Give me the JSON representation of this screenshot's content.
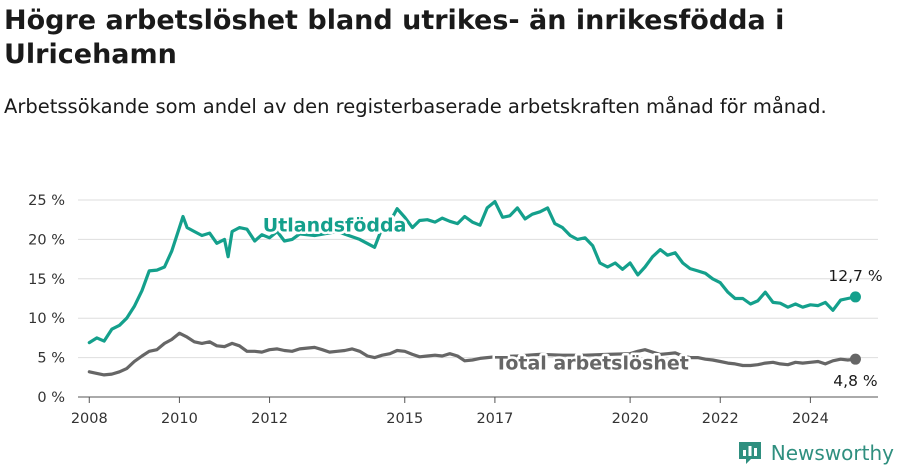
{
  "title": "Högre arbetslöshet bland utrikes- än inrikesfödda i Ulricehamn",
  "subtitle": "Arbetssökande som andel av den registerbaserade arbetskraften månad för månad.",
  "brand": {
    "name": "Newsworthy",
    "icon": "bar-chart-badge-icon",
    "color": "#2f8f7f"
  },
  "chart_data": {
    "type": "line",
    "x_unit": "year (monthly data)",
    "xlim": [
      2007.75,
      2025.5
    ],
    "ylim": [
      0,
      25
    ],
    "x_ticks": [
      2008,
      2010,
      2012,
      2015,
      2017,
      2020,
      2022,
      2024
    ],
    "y_ticks": [
      {
        "value": 0,
        "label": "0 %"
      },
      {
        "value": 5,
        "label": "5 %"
      },
      {
        "value": 10,
        "label": "10 %"
      },
      {
        "value": 15,
        "label": "15 %"
      },
      {
        "value": 20,
        "label": "20 %"
      },
      {
        "value": 25,
        "label": "25 %"
      }
    ],
    "grid": "horizontal",
    "series": [
      {
        "name": "Utlandsfödda",
        "color": "#14a08c",
        "end_label": "12,7 %",
        "points": [
          [
            2008.0,
            6.9
          ],
          [
            2008.17,
            7.5
          ],
          [
            2008.33,
            7.1
          ],
          [
            2008.5,
            8.6
          ],
          [
            2008.67,
            9.1
          ],
          [
            2008.83,
            10.0
          ],
          [
            2009.0,
            11.5
          ],
          [
            2009.17,
            13.5
          ],
          [
            2009.33,
            16.0
          ],
          [
            2009.5,
            16.1
          ],
          [
            2009.67,
            16.5
          ],
          [
            2009.83,
            18.5
          ],
          [
            2010.0,
            21.5
          ],
          [
            2010.08,
            22.9
          ],
          [
            2010.17,
            21.5
          ],
          [
            2010.33,
            21.0
          ],
          [
            2010.5,
            20.5
          ],
          [
            2010.67,
            20.8
          ],
          [
            2010.83,
            19.5
          ],
          [
            2011.0,
            20.0
          ],
          [
            2011.08,
            17.8
          ],
          [
            2011.17,
            21.0
          ],
          [
            2011.33,
            21.5
          ],
          [
            2011.5,
            21.3
          ],
          [
            2011.67,
            19.8
          ],
          [
            2011.83,
            20.6
          ],
          [
            2012.0,
            20.2
          ],
          [
            2012.17,
            21.0
          ],
          [
            2012.33,
            19.8
          ],
          [
            2012.5,
            20.0
          ],
          [
            2012.67,
            20.7
          ],
          [
            2013.0,
            20.5
          ],
          [
            2013.5,
            21.0
          ],
          [
            2014.0,
            20.0
          ],
          [
            2014.33,
            19.0
          ],
          [
            2014.5,
            21.5
          ],
          [
            2014.67,
            22.2
          ],
          [
            2014.83,
            23.9
          ],
          [
            2015.0,
            22.8
          ],
          [
            2015.17,
            21.5
          ],
          [
            2015.33,
            22.4
          ],
          [
            2015.5,
            22.5
          ],
          [
            2015.67,
            22.2
          ],
          [
            2015.83,
            22.7
          ],
          [
            2016.0,
            22.3
          ],
          [
            2016.17,
            22.0
          ],
          [
            2016.33,
            22.9
          ],
          [
            2016.5,
            22.2
          ],
          [
            2016.67,
            21.8
          ],
          [
            2016.83,
            24.0
          ],
          [
            2017.0,
            24.8
          ],
          [
            2017.17,
            22.8
          ],
          [
            2017.33,
            23.0
          ],
          [
            2017.5,
            24.0
          ],
          [
            2017.67,
            22.6
          ],
          [
            2017.83,
            23.2
          ],
          [
            2018.0,
            23.5
          ],
          [
            2018.17,
            24.0
          ],
          [
            2018.33,
            22.0
          ],
          [
            2018.5,
            21.5
          ],
          [
            2018.67,
            20.5
          ],
          [
            2018.83,
            20.0
          ],
          [
            2019.0,
            20.2
          ],
          [
            2019.17,
            19.2
          ],
          [
            2019.33,
            17.0
          ],
          [
            2019.5,
            16.5
          ],
          [
            2019.67,
            17.0
          ],
          [
            2019.83,
            16.2
          ],
          [
            2020.0,
            17.0
          ],
          [
            2020.17,
            15.5
          ],
          [
            2020.33,
            16.5
          ],
          [
            2020.5,
            17.8
          ],
          [
            2020.67,
            18.7
          ],
          [
            2020.83,
            18.0
          ],
          [
            2021.0,
            18.3
          ],
          [
            2021.17,
            17.0
          ],
          [
            2021.33,
            16.3
          ],
          [
            2021.5,
            16.0
          ],
          [
            2021.67,
            15.7
          ],
          [
            2021.83,
            15.0
          ],
          [
            2022.0,
            14.5
          ],
          [
            2022.17,
            13.3
          ],
          [
            2022.33,
            12.5
          ],
          [
            2022.5,
            12.5
          ],
          [
            2022.67,
            11.8
          ],
          [
            2022.83,
            12.2
          ],
          [
            2023.0,
            13.3
          ],
          [
            2023.17,
            12.0
          ],
          [
            2023.33,
            11.9
          ],
          [
            2023.5,
            11.4
          ],
          [
            2023.67,
            11.8
          ],
          [
            2023.83,
            11.4
          ],
          [
            2024.0,
            11.7
          ],
          [
            2024.17,
            11.6
          ],
          [
            2024.33,
            12.0
          ],
          [
            2024.5,
            11.0
          ],
          [
            2024.67,
            12.3
          ],
          [
            2024.83,
            12.5
          ],
          [
            2025.0,
            12.7
          ]
        ]
      },
      {
        "name": "Total arbetslöshet",
        "color": "#666666",
        "end_label": "4,8 %",
        "points": [
          [
            2008.0,
            3.2
          ],
          [
            2008.17,
            3.0
          ],
          [
            2008.33,
            2.8
          ],
          [
            2008.5,
            2.9
          ],
          [
            2008.67,
            3.2
          ],
          [
            2008.83,
            3.6
          ],
          [
            2009.0,
            4.5
          ],
          [
            2009.17,
            5.2
          ],
          [
            2009.33,
            5.8
          ],
          [
            2009.5,
            6.0
          ],
          [
            2009.67,
            6.8
          ],
          [
            2009.83,
            7.3
          ],
          [
            2010.0,
            8.1
          ],
          [
            2010.17,
            7.6
          ],
          [
            2010.33,
            7.0
          ],
          [
            2010.5,
            6.8
          ],
          [
            2010.67,
            7.0
          ],
          [
            2010.83,
            6.5
          ],
          [
            2011.0,
            6.4
          ],
          [
            2011.17,
            6.8
          ],
          [
            2011.33,
            6.5
          ],
          [
            2011.5,
            5.8
          ],
          [
            2011.67,
            5.8
          ],
          [
            2011.83,
            5.7
          ],
          [
            2012.0,
            6.0
          ],
          [
            2012.17,
            6.1
          ],
          [
            2012.33,
            5.9
          ],
          [
            2012.5,
            5.8
          ],
          [
            2012.67,
            6.1
          ],
          [
            2012.83,
            6.2
          ],
          [
            2013.0,
            6.3
          ],
          [
            2013.17,
            6.0
          ],
          [
            2013.33,
            5.7
          ],
          [
            2013.5,
            5.8
          ],
          [
            2013.67,
            5.9
          ],
          [
            2013.83,
            6.1
          ],
          [
            2014.0,
            5.8
          ],
          [
            2014.17,
            5.2
          ],
          [
            2014.33,
            5.0
          ],
          [
            2014.5,
            5.3
          ],
          [
            2014.67,
            5.5
          ],
          [
            2014.83,
            5.9
          ],
          [
            2015.0,
            5.8
          ],
          [
            2015.17,
            5.4
          ],
          [
            2015.33,
            5.1
          ],
          [
            2015.5,
            5.2
          ],
          [
            2015.67,
            5.3
          ],
          [
            2015.83,
            5.2
          ],
          [
            2016.0,
            5.5
          ],
          [
            2016.17,
            5.2
          ],
          [
            2016.33,
            4.6
          ],
          [
            2016.5,
            4.7
          ],
          [
            2016.67,
            4.9
          ],
          [
            2016.83,
            5.0
          ],
          [
            2017.0,
            5.1
          ],
          [
            2017.5,
            5.2
          ],
          [
            2018.0,
            5.4
          ],
          [
            2018.5,
            5.3
          ],
          [
            2019.0,
            5.3
          ],
          [
            2019.5,
            5.4
          ],
          [
            2020.0,
            5.5
          ],
          [
            2020.17,
            5.8
          ],
          [
            2020.33,
            6.0
          ],
          [
            2020.5,
            5.7
          ],
          [
            2020.67,
            5.4
          ],
          [
            2020.83,
            5.5
          ],
          [
            2021.0,
            5.6
          ],
          [
            2021.17,
            5.2
          ],
          [
            2021.33,
            5.0
          ],
          [
            2021.5,
            5.0
          ],
          [
            2021.67,
            4.8
          ],
          [
            2021.83,
            4.7
          ],
          [
            2022.0,
            4.5
          ],
          [
            2022.17,
            4.3
          ],
          [
            2022.33,
            4.2
          ],
          [
            2022.5,
            4.0
          ],
          [
            2022.67,
            4.0
          ],
          [
            2022.83,
            4.1
          ],
          [
            2023.0,
            4.3
          ],
          [
            2023.17,
            4.4
          ],
          [
            2023.33,
            4.2
          ],
          [
            2023.5,
            4.1
          ],
          [
            2023.67,
            4.4
          ],
          [
            2023.83,
            4.3
          ],
          [
            2024.0,
            4.4
          ],
          [
            2024.17,
            4.5
          ],
          [
            2024.33,
            4.2
          ],
          [
            2024.5,
            4.6
          ],
          [
            2024.67,
            4.8
          ],
          [
            2024.83,
            4.7
          ],
          [
            2025.0,
            4.8
          ]
        ]
      }
    ]
  }
}
